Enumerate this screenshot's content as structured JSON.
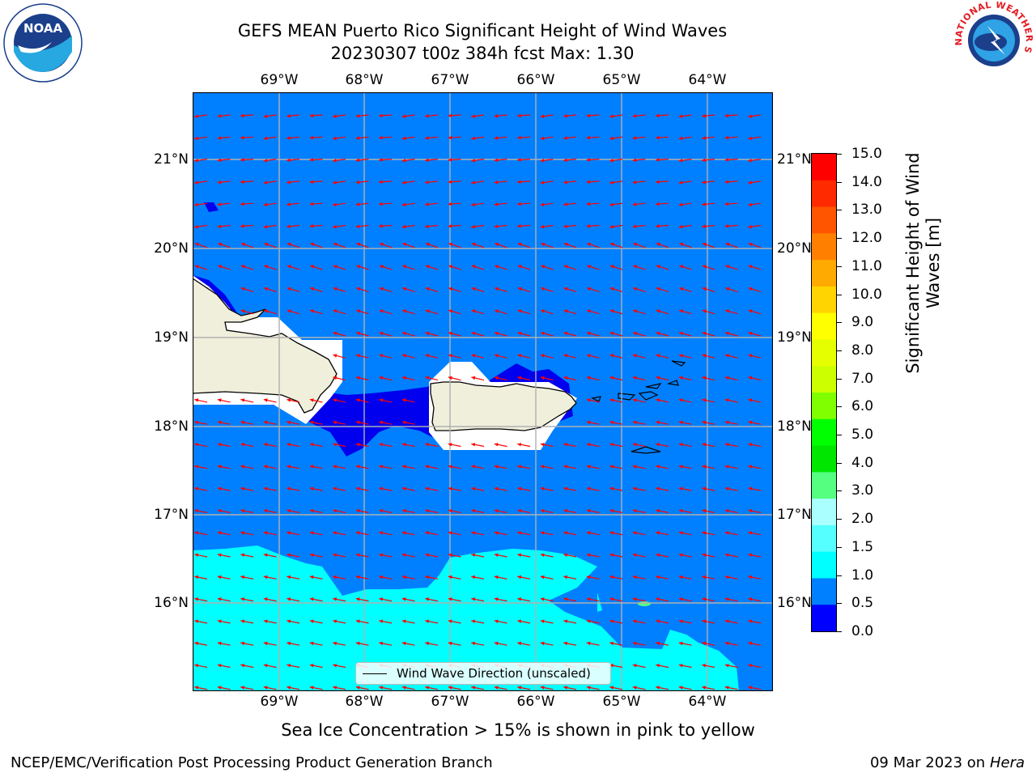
{
  "header": {
    "title_line1": "GEFS MEAN Puerto Rico Significant Height of Wind Waves",
    "title_line2": "20230307 t00z 384h fcst   Max: 1.30"
  },
  "map": {
    "lon_labels": [
      "69°W",
      "68°W",
      "67°W",
      "66°W",
      "65°W",
      "64°W"
    ],
    "lat_labels": [
      "21°N",
      "20°N",
      "19°N",
      "18°N",
      "17°N",
      "16°N"
    ],
    "legend_label": "Wind Wave Direction (unscaled)",
    "colors": {
      "ocean_low": "#0000ee",
      "ocean_mid": "#0080ff",
      "ocean_high": "#00ffff",
      "land": "#f0efdc",
      "arrows": "#ff0000"
    }
  },
  "colorbar": {
    "ticks": [
      "15.0",
      "14.0",
      "13.0",
      "12.0",
      "11.0",
      "10.0",
      "9.0",
      "8.0",
      "7.0",
      "6.0",
      "5.0",
      "4.0",
      "3.0",
      "2.0",
      "1.5",
      "1.0",
      "0.5",
      "0.0"
    ],
    "colors": [
      "#ff0000",
      "#ff2a00",
      "#ff5500",
      "#ff8000",
      "#ffaa00",
      "#ffd400",
      "#ffff00",
      "#e6ff00",
      "#ccff00",
      "#80ff00",
      "#00ff00",
      "#00e600",
      "#55ff80",
      "#aaffff",
      "#55ffff",
      "#00ffff",
      "#0080ff",
      "#0000ff"
    ],
    "title": "Significant Height of Wind Waves [m]"
  },
  "notes": {
    "sea_ice": "Sea Ice Concentration > 15% is shown in pink to yellow",
    "producer": "NCEP/EMC/Verification Post Processing Product Generation Branch",
    "date": "09 Mar 2023 on",
    "host": "Hera"
  },
  "logos": {
    "noaa_text": "NOAA",
    "nws_text": "NATIONAL WEATHER SERVICE"
  }
}
